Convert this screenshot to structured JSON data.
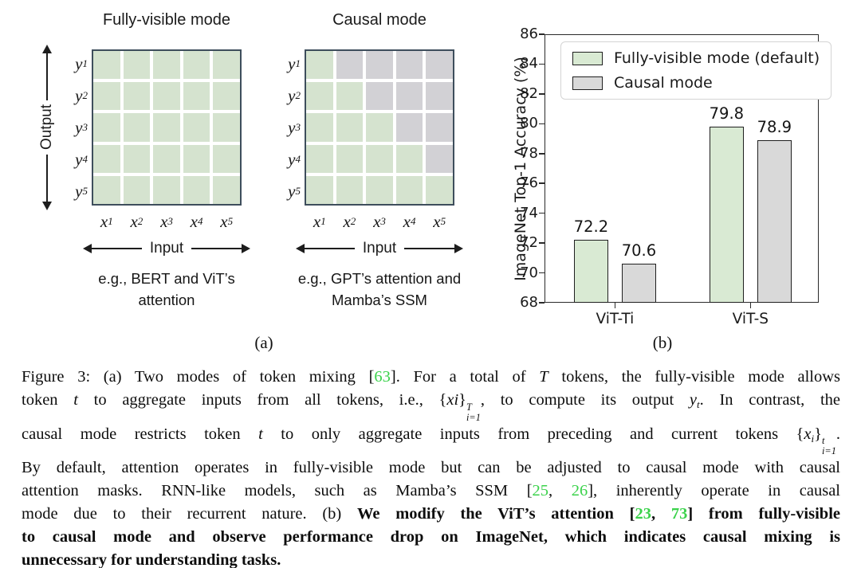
{
  "panel_a": {
    "label": "(a)",
    "output_axis_label": "Output",
    "input_axis_label": "Input",
    "row_labels": [
      "y1",
      "y2",
      "y3",
      "y4",
      "y5"
    ],
    "col_labels": [
      "x1",
      "x2",
      "x3",
      "x4",
      "x5"
    ],
    "colors": {
      "active": "#d5e3cf",
      "masked": "#d2d1d5",
      "border": "#3e4e5c"
    },
    "matrices": [
      {
        "title": "Fully-visible mode",
        "example_lines": [
          "e.g., BERT and ViT’s",
          "attention"
        ],
        "cells": [
          [
            1,
            1,
            1,
            1,
            1
          ],
          [
            1,
            1,
            1,
            1,
            1
          ],
          [
            1,
            1,
            1,
            1,
            1
          ],
          [
            1,
            1,
            1,
            1,
            1
          ],
          [
            1,
            1,
            1,
            1,
            1
          ]
        ]
      },
      {
        "title": "Causal mode",
        "example_lines": [
          "e.g., GPT’s attention and",
          "Mamba’s SSM"
        ],
        "cells": [
          [
            1,
            0,
            0,
            0,
            0
          ],
          [
            1,
            1,
            0,
            0,
            0
          ],
          [
            1,
            1,
            1,
            0,
            0
          ],
          [
            1,
            1,
            1,
            1,
            0
          ],
          [
            1,
            1,
            1,
            1,
            1
          ]
        ]
      }
    ]
  },
  "panel_b": {
    "label": "(b)",
    "chart_data": {
      "type": "bar",
      "categories": [
        "ViT-Ti",
        "ViT-S"
      ],
      "series": [
        {
          "name": "Fully-visible mode (default)",
          "values": [
            72.2,
            79.8
          ],
          "color": "#d9ead3"
        },
        {
          "name": "Causal mode",
          "values": [
            70.6,
            78.9
          ],
          "color": "#d9d9d9"
        }
      ],
      "value_labels": [
        [
          "72.2",
          "79.8"
        ],
        [
          "70.6",
          "78.9"
        ]
      ],
      "ylabel": "ImageNet Top-1 Accuracy (%)",
      "ylim": [
        68,
        86
      ],
      "ytick_step": 2,
      "grid": false,
      "legend_position": "upper left",
      "bar_edge_color": "#1f1f1f"
    }
  },
  "caption": {
    "cite_color": "#3bd24b",
    "lines": [
      {
        "justify": true,
        "segments": [
          {
            "t": "Figure 3: (a) Two modes of token mixing ["
          },
          {
            "t": "63",
            "c": 1
          },
          {
            "t": "]. For a total of "
          },
          {
            "t": "T",
            "i": 1
          },
          {
            "t": " tokens, the fully-visible mode allows"
          }
        ]
      },
      {
        "justify": true,
        "segments": [
          {
            "t": "token "
          },
          {
            "t": "t",
            "i": 1
          },
          {
            "t": " to aggregate inputs from all tokens, i.e., {"
          },
          {
            "t": "xi",
            "i": 1
          },
          {
            "t": "}"
          },
          {
            "stack": {
              "sup": "T",
              "sub": "i=1"
            }
          },
          {
            "t": ", to compute its output "
          },
          {
            "t": "y",
            "i": 1
          },
          {
            "t": "t",
            "i": 1,
            "v": "sub"
          },
          {
            "t": ". In contrast, the"
          }
        ]
      },
      {
        "justify": true,
        "segments": [
          {
            "t": "causal mode restricts token "
          },
          {
            "t": "t",
            "i": 1
          },
          {
            "t": " to only aggregate inputs from preceding and current tokens {"
          },
          {
            "t": "x",
            "i": 1
          },
          {
            "t": "i",
            "i": 1,
            "v": "sub"
          },
          {
            "t": "}"
          },
          {
            "stack": {
              "sup": "t",
              "sub": "i=1"
            }
          },
          {
            "t": "."
          }
        ]
      },
      {
        "justify": true,
        "segments": [
          {
            "t": "By default, attention operates in fully-visible mode but can be adjusted to causal mode with causal"
          }
        ]
      },
      {
        "justify": true,
        "segments": [
          {
            "t": "attention masks.  RNN-like models, such as Mamba’s SSM ["
          },
          {
            "t": "25",
            "c": 1
          },
          {
            "t": ", "
          },
          {
            "t": "26",
            "c": 1
          },
          {
            "t": "], inherently operate in causal"
          }
        ]
      },
      {
        "justify": true,
        "segments": [
          {
            "t": "mode due to their recurrent nature. (b) "
          },
          {
            "t": "We modify the ViT’s attention [",
            "b": 1
          },
          {
            "t": "23",
            "b": 1,
            "c": 1
          },
          {
            "t": ", ",
            "b": 1
          },
          {
            "t": "73",
            "b": 1,
            "c": 1
          },
          {
            "t": "] from fully-visible",
            "b": 1
          }
        ]
      },
      {
        "justify": true,
        "segments": [
          {
            "t": "to causal mode and observe performance drop on ImageNet, which indicates causal mixing is",
            "b": 1
          }
        ]
      },
      {
        "justify": false,
        "segments": [
          {
            "t": "unnecessary for understanding tasks.",
            "b": 1
          }
        ]
      }
    ]
  }
}
